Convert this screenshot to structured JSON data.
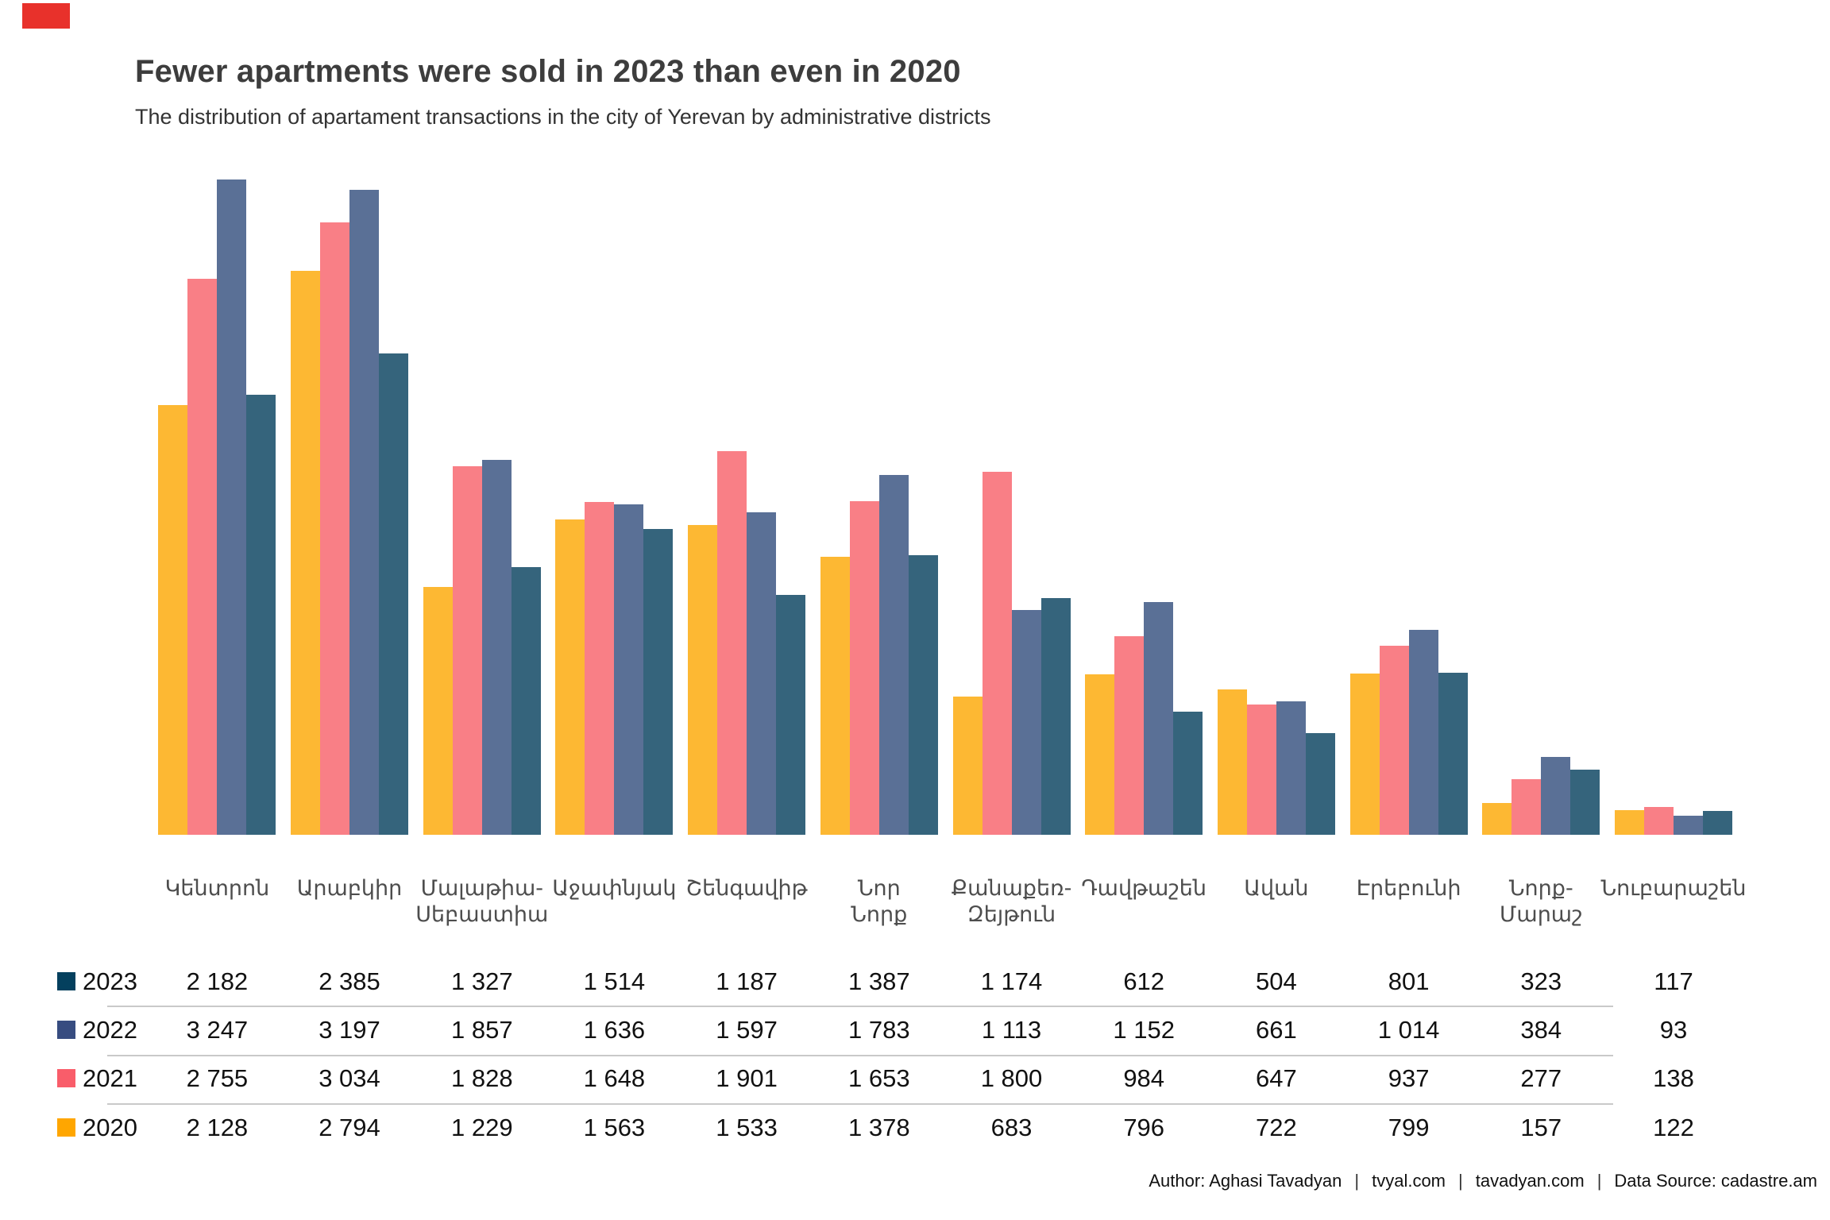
{
  "header": {
    "title": "Fewer apartments were sold in 2023 than even in 2020",
    "subtitle": "The distribution of apartament transactions in the city of Yerevan by administrative districts"
  },
  "corner_mark_color": "#e8312b",
  "chart_data": {
    "type": "bar",
    "title": "Fewer apartments were sold in 2023 than even in 2020",
    "subtitle": "The distribution of apartament transactions in the city of Yerevan by administrative districts",
    "categories": [
      "Կենտրոն",
      "Արաբկիր",
      "Մալաթիա-\nՍեբաստիա",
      "Աջափնյակ",
      "Շենգավիթ",
      "Նոր\nՆորք",
      "Քանաքեռ-\nԶեյթուն",
      "Դավթաշեն",
      "Ավան",
      "Էրեբունի",
      "Նորք-\nՄարաշ",
      "Նուբարաշեն"
    ],
    "series": [
      {
        "name": "2020",
        "bar_color": "#FDB833",
        "legend_color": "#FFA600",
        "values": [
          2128,
          2794,
          1229,
          1563,
          1533,
          1378,
          683,
          796,
          722,
          799,
          157,
          122
        ]
      },
      {
        "name": "2021",
        "bar_color": "#F97F86",
        "legend_color": "#F95D6A",
        "values": [
          2755,
          3034,
          1828,
          1648,
          1901,
          1653,
          1800,
          984,
          647,
          937,
          277,
          138
        ]
      },
      {
        "name": "2022",
        "bar_color": "#5A7096",
        "legend_color": "#374C80",
        "values": [
          3247,
          3197,
          1857,
          1636,
          1597,
          1783,
          1113,
          1152,
          661,
          1014,
          384,
          93
        ]
      },
      {
        "name": "2023",
        "bar_color": "#35647C",
        "legend_color": "#04405E",
        "values": [
          2182,
          2385,
          1327,
          1514,
          1187,
          1387,
          1174,
          612,
          504,
          801,
          323,
          117
        ]
      }
    ],
    "ylim": [
      0,
      3247
    ],
    "grid": false,
    "legend_position": "table-rows-bottom-left",
    "table_row_order": [
      "2023",
      "2022",
      "2021",
      "2020"
    ],
    "number_format": "thousands separated by space"
  },
  "footer": {
    "parts": [
      "Author: Aghasi Tavadyan",
      "tvyal.com",
      "tavadyan.com",
      "Data Source: cadastre.am"
    ],
    "separator": "|"
  }
}
